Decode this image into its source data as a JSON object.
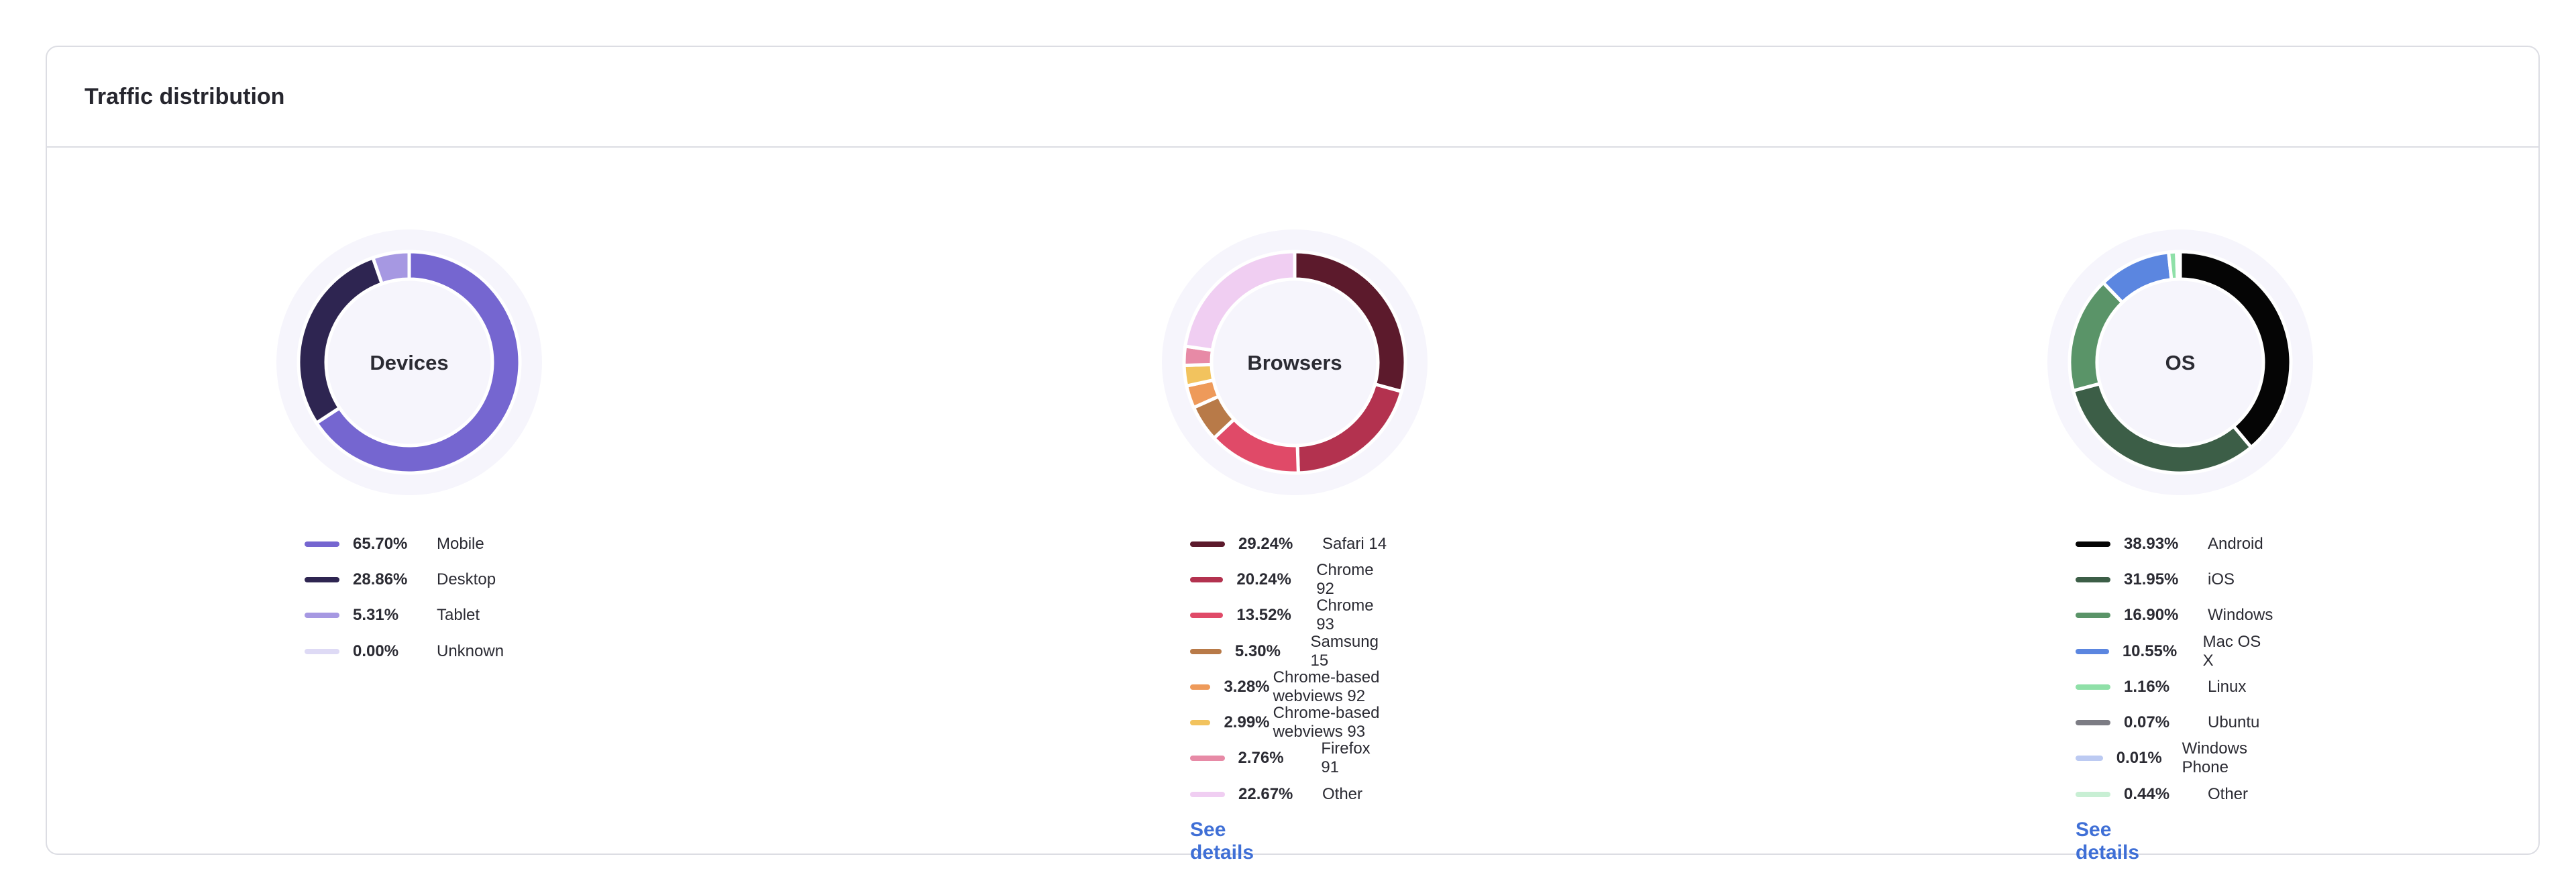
{
  "title": "Traffic distribution",
  "chart_data": [
    {
      "type": "pie",
      "title": "Devices",
      "series": [
        {
          "name": "Mobile",
          "value": 65.7,
          "label": "65.70%",
          "color": "#7566d0"
        },
        {
          "name": "Desktop",
          "value": 28.86,
          "label": "28.86%",
          "color": "#2e2551"
        },
        {
          "name": "Tablet",
          "value": 5.31,
          "label": "5.31%",
          "color": "#a698e2"
        },
        {
          "name": "Unknown",
          "value": 0.0,
          "label": "0.00%",
          "color": "#dedaf5"
        }
      ]
    },
    {
      "type": "pie",
      "title": "Browsers",
      "link": "See details",
      "series": [
        {
          "name": "Safari 14",
          "value": 29.24,
          "label": "29.24%",
          "color": "#5c1a2c"
        },
        {
          "name": "Chrome 92",
          "value": 20.24,
          "label": "20.24%",
          "color": "#b3324f"
        },
        {
          "name": "Chrome 93",
          "value": 13.52,
          "label": "13.52%",
          "color": "#e04a68"
        },
        {
          "name": "Samsung 15",
          "value": 5.3,
          "label": "5.30%",
          "color": "#b87a48"
        },
        {
          "name": "Chrome-based webviews 92",
          "value": 3.28,
          "label": "3.28%",
          "color": "#ee9a5a"
        },
        {
          "name": "Chrome-based webviews 93",
          "value": 2.99,
          "label": "2.99%",
          "color": "#f2c35e"
        },
        {
          "name": "Firefox 91",
          "value": 2.76,
          "label": "2.76%",
          "color": "#e78aa6"
        },
        {
          "name": "Other",
          "value": 22.67,
          "label": "22.67%",
          "color": "#f0cef2"
        }
      ]
    },
    {
      "type": "pie",
      "title": "OS",
      "link": "See details",
      "series": [
        {
          "name": "Android",
          "value": 38.93,
          "label": "38.93%",
          "color": "#050505"
        },
        {
          "name": "iOS",
          "value": 31.95,
          "label": "31.95%",
          "color": "#3c5e47"
        },
        {
          "name": "Windows",
          "value": 16.9,
          "label": "16.90%",
          "color": "#5a9468"
        },
        {
          "name": "Mac OS X",
          "value": 10.55,
          "label": "10.55%",
          "color": "#5b86e0"
        },
        {
          "name": "Linux",
          "value": 1.16,
          "label": "1.16%",
          "color": "#8fe0a8"
        },
        {
          "name": "Ubuntu",
          "value": 0.07,
          "label": "0.07%",
          "color": "#7c7c84"
        },
        {
          "name": "Windows Phone",
          "value": 0.01,
          "label": "0.01%",
          "color": "#bccaf2"
        },
        {
          "name": "Other",
          "value": 0.44,
          "label": "0.44%",
          "color": "#c8efd4"
        }
      ]
    }
  ]
}
